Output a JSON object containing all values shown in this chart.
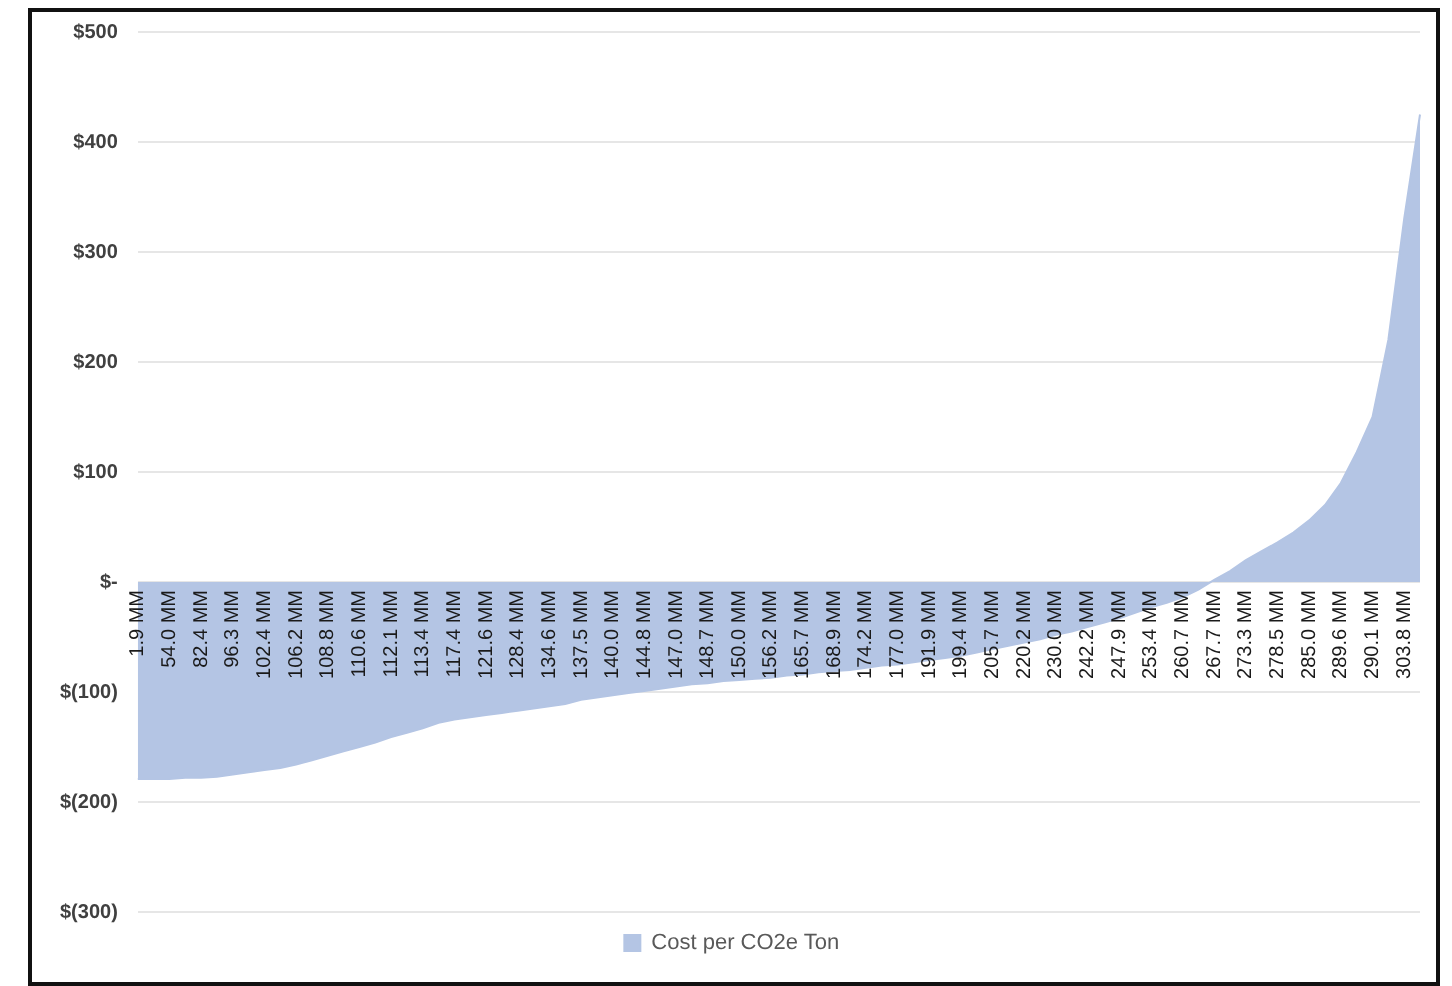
{
  "chart_data": {
    "type": "area",
    "categories": [
      "1.9 MM",
      null,
      "54.0 MM",
      null,
      "82.4 MM",
      null,
      "96.3 MM",
      null,
      "102.4 MM",
      null,
      "106.2 MM",
      null,
      "108.8 MM",
      null,
      "110.6 MM",
      null,
      "112.1 MM",
      null,
      "113.4 MM",
      null,
      "117.4 MM",
      null,
      "121.6 MM",
      null,
      "128.4 MM",
      null,
      "134.6 MM",
      null,
      "137.5 MM",
      null,
      "140.0 MM",
      null,
      "144.8 MM",
      null,
      "147.0 MM",
      null,
      "148.7 MM",
      null,
      "150.0 MM",
      null,
      "156.2 MM",
      null,
      "165.7 MM",
      null,
      "168.9 MM",
      null,
      "174.2 MM",
      null,
      "177.0 MM",
      null,
      "191.9 MM",
      null,
      "199.4 MM",
      null,
      "205.7 MM",
      null,
      "220.2 MM",
      null,
      "230.0 MM",
      null,
      "242.2 MM",
      null,
      "247.9 MM",
      null,
      "253.4 MM",
      null,
      "260.7 MM",
      null,
      "267.7 MM",
      null,
      "273.3 MM",
      null,
      "278.5 MM",
      null,
      "285.0 MM",
      null,
      "289.6 MM",
      null,
      "290.1 MM",
      null,
      "303.8 MM",
      null
    ],
    "series": [
      {
        "name": "Cost per CO2e Ton",
        "color": "#b4c5e4",
        "values": [
          -179,
          -179,
          -179,
          -178,
          -178,
          -177,
          -175,
          -173,
          -171,
          -169,
          -166,
          -162,
          -158,
          -154,
          -150,
          -146,
          -141,
          -137,
          -133,
          -128,
          -125,
          -123,
          -121,
          -119,
          -117,
          -115,
          -113,
          -111,
          -107,
          -105,
          -103,
          -101,
          -99,
          -97,
          -95,
          -93,
          -92,
          -90,
          -89,
          -88,
          -87,
          -85,
          -84,
          -82,
          -81,
          -80,
          -78,
          -76,
          -75,
          -73,
          -71,
          -69,
          -67,
          -64,
          -61,
          -58,
          -55,
          -52,
          -48,
          -45,
          -41,
          -37,
          -33,
          -28,
          -23,
          -19,
          -14,
          -7,
          2,
          10,
          20,
          28,
          36,
          45,
          56,
          70,
          90,
          118,
          150,
          220,
          330,
          425
        ]
      }
    ],
    "ylim": [
      -300,
      500
    ],
    "yticks": [
      {
        "value": -300,
        "label": "$(300)"
      },
      {
        "value": -200,
        "label": "$(200)"
      },
      {
        "value": -100,
        "label": "$(100)"
      },
      {
        "value": 0,
        "label": "$-"
      },
      {
        "value": 100,
        "label": "$100"
      },
      {
        "value": 200,
        "label": "$200"
      },
      {
        "value": 300,
        "label": "$300"
      },
      {
        "value": 400,
        "label": "$400"
      },
      {
        "value": 500,
        "label": "$500"
      }
    ],
    "grid": "y",
    "legend": "bottom"
  }
}
